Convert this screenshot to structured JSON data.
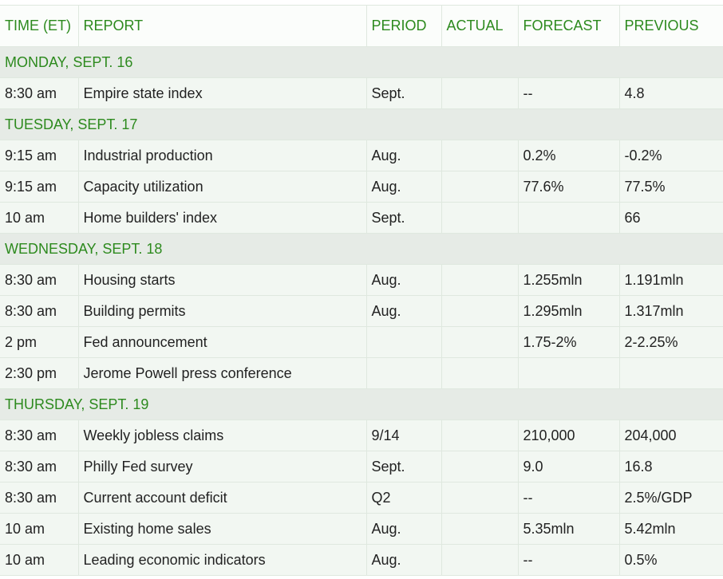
{
  "headers": {
    "time": "TIME (ET)",
    "report": "REPORT",
    "period": "PERIOD",
    "actual": "ACTUAL",
    "forecast": "FORECAST",
    "previous": "PREVIOUS"
  },
  "days": [
    {
      "label": "MONDAY, SEPT. 16",
      "rows": [
        {
          "time": "8:30 am",
          "report": "Empire state index",
          "period": "Sept.",
          "actual": "",
          "forecast": "--",
          "previous": "4.8"
        }
      ]
    },
    {
      "label": "TUESDAY, SEPT. 17",
      "rows": [
        {
          "time": "9:15 am",
          "report": "Industrial production",
          "period": "Aug.",
          "actual": "",
          "forecast": "0.2%",
          "previous": "-0.2%"
        },
        {
          "time": "9:15 am",
          "report": "Capacity utilization",
          "period": "Aug.",
          "actual": "",
          "forecast": "77.6%",
          "previous": "77.5%"
        },
        {
          "time": "10 am",
          "report": "Home builders' index",
          "period": "Sept.",
          "actual": "",
          "forecast": "",
          "previous": "66"
        }
      ]
    },
    {
      "label": "WEDNESDAY, SEPT. 18",
      "rows": [
        {
          "time": "8:30 am",
          "report": "Housing starts",
          "period": "Aug.",
          "actual": "",
          "forecast": "1.255mln",
          "previous": "1.191mln"
        },
        {
          "time": "8:30 am",
          "report": "Building permits",
          "period": "Aug.",
          "actual": "",
          "forecast": "1.295mln",
          "previous": "1.317mln"
        },
        {
          "time": "2 pm",
          "report": "Fed announcement",
          "period": "",
          "actual": "",
          "forecast": "1.75-2%",
          "previous": "2-2.25%"
        },
        {
          "time": "2:30 pm",
          "report": "Jerome Powell press conference",
          "period": "",
          "actual": "",
          "forecast": "",
          "previous": ""
        }
      ]
    },
    {
      "label": "THURSDAY, SEPT. 19",
      "rows": [
        {
          "time": "8:30 am",
          "report": "Weekly jobless claims",
          "period": "9/14",
          "actual": "",
          "forecast": "210,000",
          "previous": "204,000"
        },
        {
          "time": "8:30 am",
          "report": "Philly Fed survey",
          "period": "Sept.",
          "actual": "",
          "forecast": "9.0",
          "previous": "16.8"
        },
        {
          "time": "8:30 am",
          "report": "Current account deficit",
          "period": "Q2",
          "actual": "",
          "forecast": "--",
          "previous": "2.5%/GDP"
        },
        {
          "time": "10 am",
          "report": "Existing home sales",
          "period": "Aug.",
          "actual": "",
          "forecast": "5.35mln",
          "previous": "5.42mln"
        },
        {
          "time": "10 am",
          "report": "Leading economic indicators",
          "period": "Aug.",
          "actual": "",
          "forecast": "--",
          "previous": "0.5%"
        }
      ]
    }
  ]
}
